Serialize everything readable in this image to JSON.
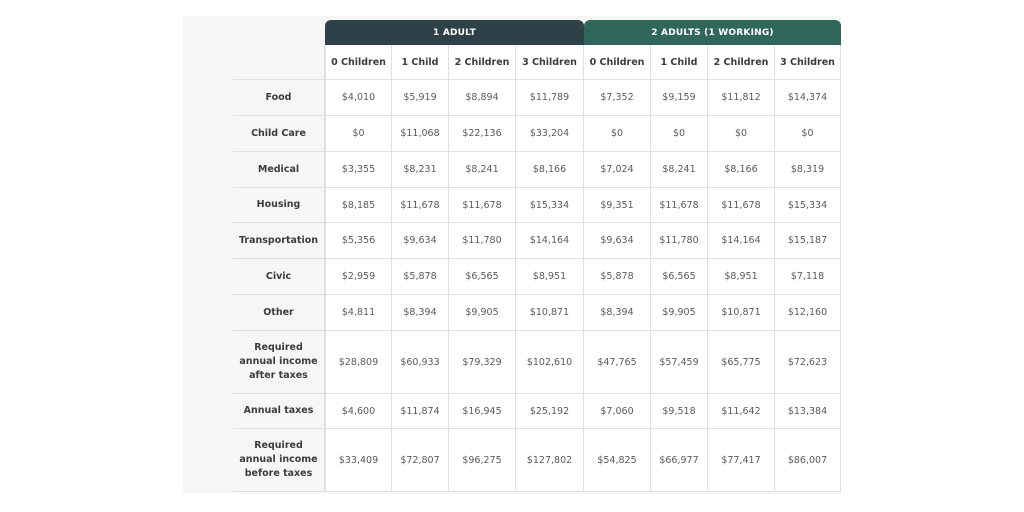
{
  "table": {
    "group_headers": [
      "1 ADULT",
      "2 ADULTS  (1 WORKING)"
    ],
    "column_headers": [
      "0 Children",
      "1 Child",
      "2 Children",
      "3 Children",
      "0 Children",
      "1 Child",
      "2 Children",
      "3 Children"
    ],
    "rows": [
      {
        "label": "Food",
        "values": [
          "$4,010",
          "$5,919",
          "$8,894",
          "$11,789",
          "$7,352",
          "$9,159",
          "$11,812",
          "$14,374"
        ]
      },
      {
        "label": "Child Care",
        "values": [
          "$0",
          "$11,068",
          "$22,136",
          "$33,204",
          "$0",
          "$0",
          "$0",
          "$0"
        ]
      },
      {
        "label": "Medical",
        "values": [
          "$3,355",
          "$8,231",
          "$8,241",
          "$8,166",
          "$7,024",
          "$8,241",
          "$8,166",
          "$8,319"
        ]
      },
      {
        "label": "Housing",
        "values": [
          "$8,185",
          "$11,678",
          "$11,678",
          "$15,334",
          "$9,351",
          "$11,678",
          "$11,678",
          "$15,334"
        ]
      },
      {
        "label": "Transportation",
        "values": [
          "$5,356",
          "$9,634",
          "$11,780",
          "$14,164",
          "$9,634",
          "$11,780",
          "$14,164",
          "$15,187"
        ]
      },
      {
        "label": "Civic",
        "values": [
          "$2,959",
          "$5,878",
          "$6,565",
          "$8,951",
          "$5,878",
          "$6,565",
          "$8,951",
          "$7,118"
        ]
      },
      {
        "label": "Other",
        "values": [
          "$4,811",
          "$8,394",
          "$9,905",
          "$10,871",
          "$8,394",
          "$9,905",
          "$10,871",
          "$12,160"
        ]
      },
      {
        "label": "Required annual income after taxes",
        "values": [
          "$28,809",
          "$60,933",
          "$79,329",
          "$102,610",
          "$47,765",
          "$57,459",
          "$65,775",
          "$72,623"
        ]
      },
      {
        "label": "Annual taxes",
        "values": [
          "$4,600",
          "$11,874",
          "$16,945",
          "$25,192",
          "$7,060",
          "$9,518",
          "$11,642",
          "$13,384"
        ]
      },
      {
        "label": "Required annual income before taxes",
        "values": [
          "$33,409",
          "$72,807",
          "$96,275",
          "$127,802",
          "$54,825",
          "$66,977",
          "$77,417",
          "$86,007"
        ]
      }
    ]
  },
  "colors": {
    "group_1_header": "#2f4148",
    "group_2_header": "#30675b",
    "panel_background": "#f6f6f6"
  }
}
